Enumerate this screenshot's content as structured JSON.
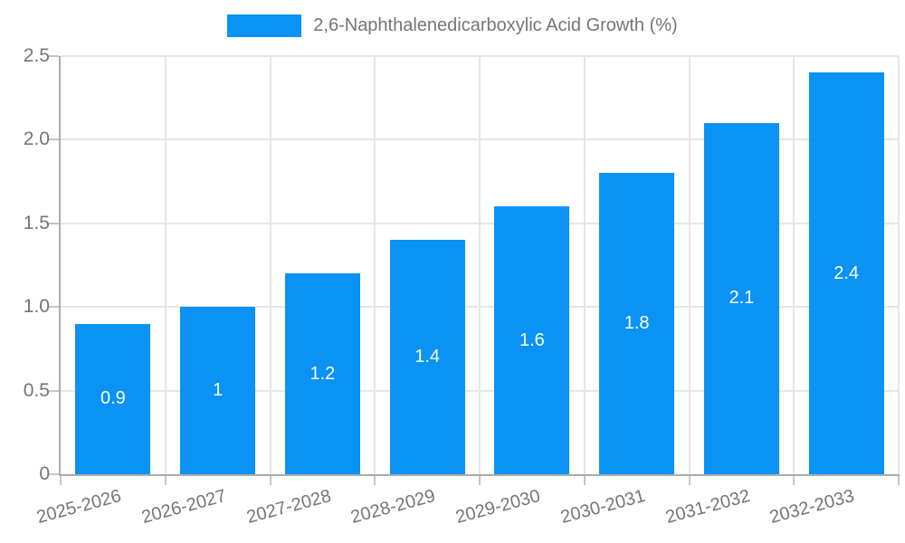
{
  "chart_data": {
    "type": "bar",
    "categories": [
      "2025-2026",
      "2026-2027",
      "2027-2028",
      "2028-2029",
      "2029-2030",
      "2030-2031",
      "2031-2032",
      "2032-2033"
    ],
    "values": [
      0.9,
      1,
      1.2,
      1.4,
      1.6,
      1.8,
      2.1,
      2.4
    ],
    "value_labels": [
      "0.9",
      "1",
      "1.2",
      "1.4",
      "1.6",
      "1.8",
      "2.1",
      "2.4"
    ],
    "legend": "2,6-Naphthalenedicarboxylic Acid Growth (%)",
    "legend_position": "top-center",
    "ylim": [
      0,
      2.5
    ],
    "yticks": [
      0,
      0.5,
      1,
      1.5,
      2,
      2.5
    ],
    "ytick_labels": [
      "0",
      "0.5",
      "1.0",
      "1.5",
      "2.0",
      "2.5"
    ],
    "grid": true,
    "value_label_position": "center-of-bar",
    "xlabel_rotation_deg": -15,
    "colors": {
      "bar": "#0A92F5",
      "grid": "#E6E6E6",
      "axis": "#ABABAB",
      "tick": "#C6C6C6",
      "text": "#757575",
      "value_label": "#FFFFFF"
    }
  }
}
